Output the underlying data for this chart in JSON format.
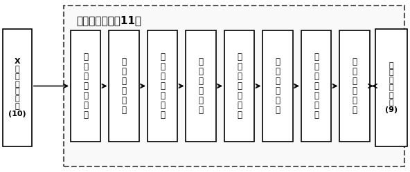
{
  "title": "图像处理装置（11）",
  "title_fontsize": 11,
  "left_box_label": "X\n光\n片\n处\n理\n装\n置\n(10)",
  "right_box_label": "中\n央\n处\n理\n装\n置\n(9)",
  "flow_boxes": [
    "第\n一\n预\n处\n理\n模\n块",
    "图\n像\n增\n强\n模\n块",
    "第\n二\n预\n处\n理\n模\n块",
    "图\n像\n平\n滑\n模\n块",
    "第\n三\n预\n处\n理\n模\n块",
    "图\n像\n锐\n化\n模\n块",
    "第\n四\n预\n处\n理\n模\n块",
    "灰\n度\n变\n换\n模\n块"
  ],
  "bg_color": "#ffffff",
  "box_facecolor": "#ffffff",
  "box_edgecolor": "#000000",
  "dashed_rect_color": "#555555",
  "font_family": "SimHei",
  "font_size_box": 8.5,
  "fig_width": 5.92,
  "fig_height": 2.49
}
